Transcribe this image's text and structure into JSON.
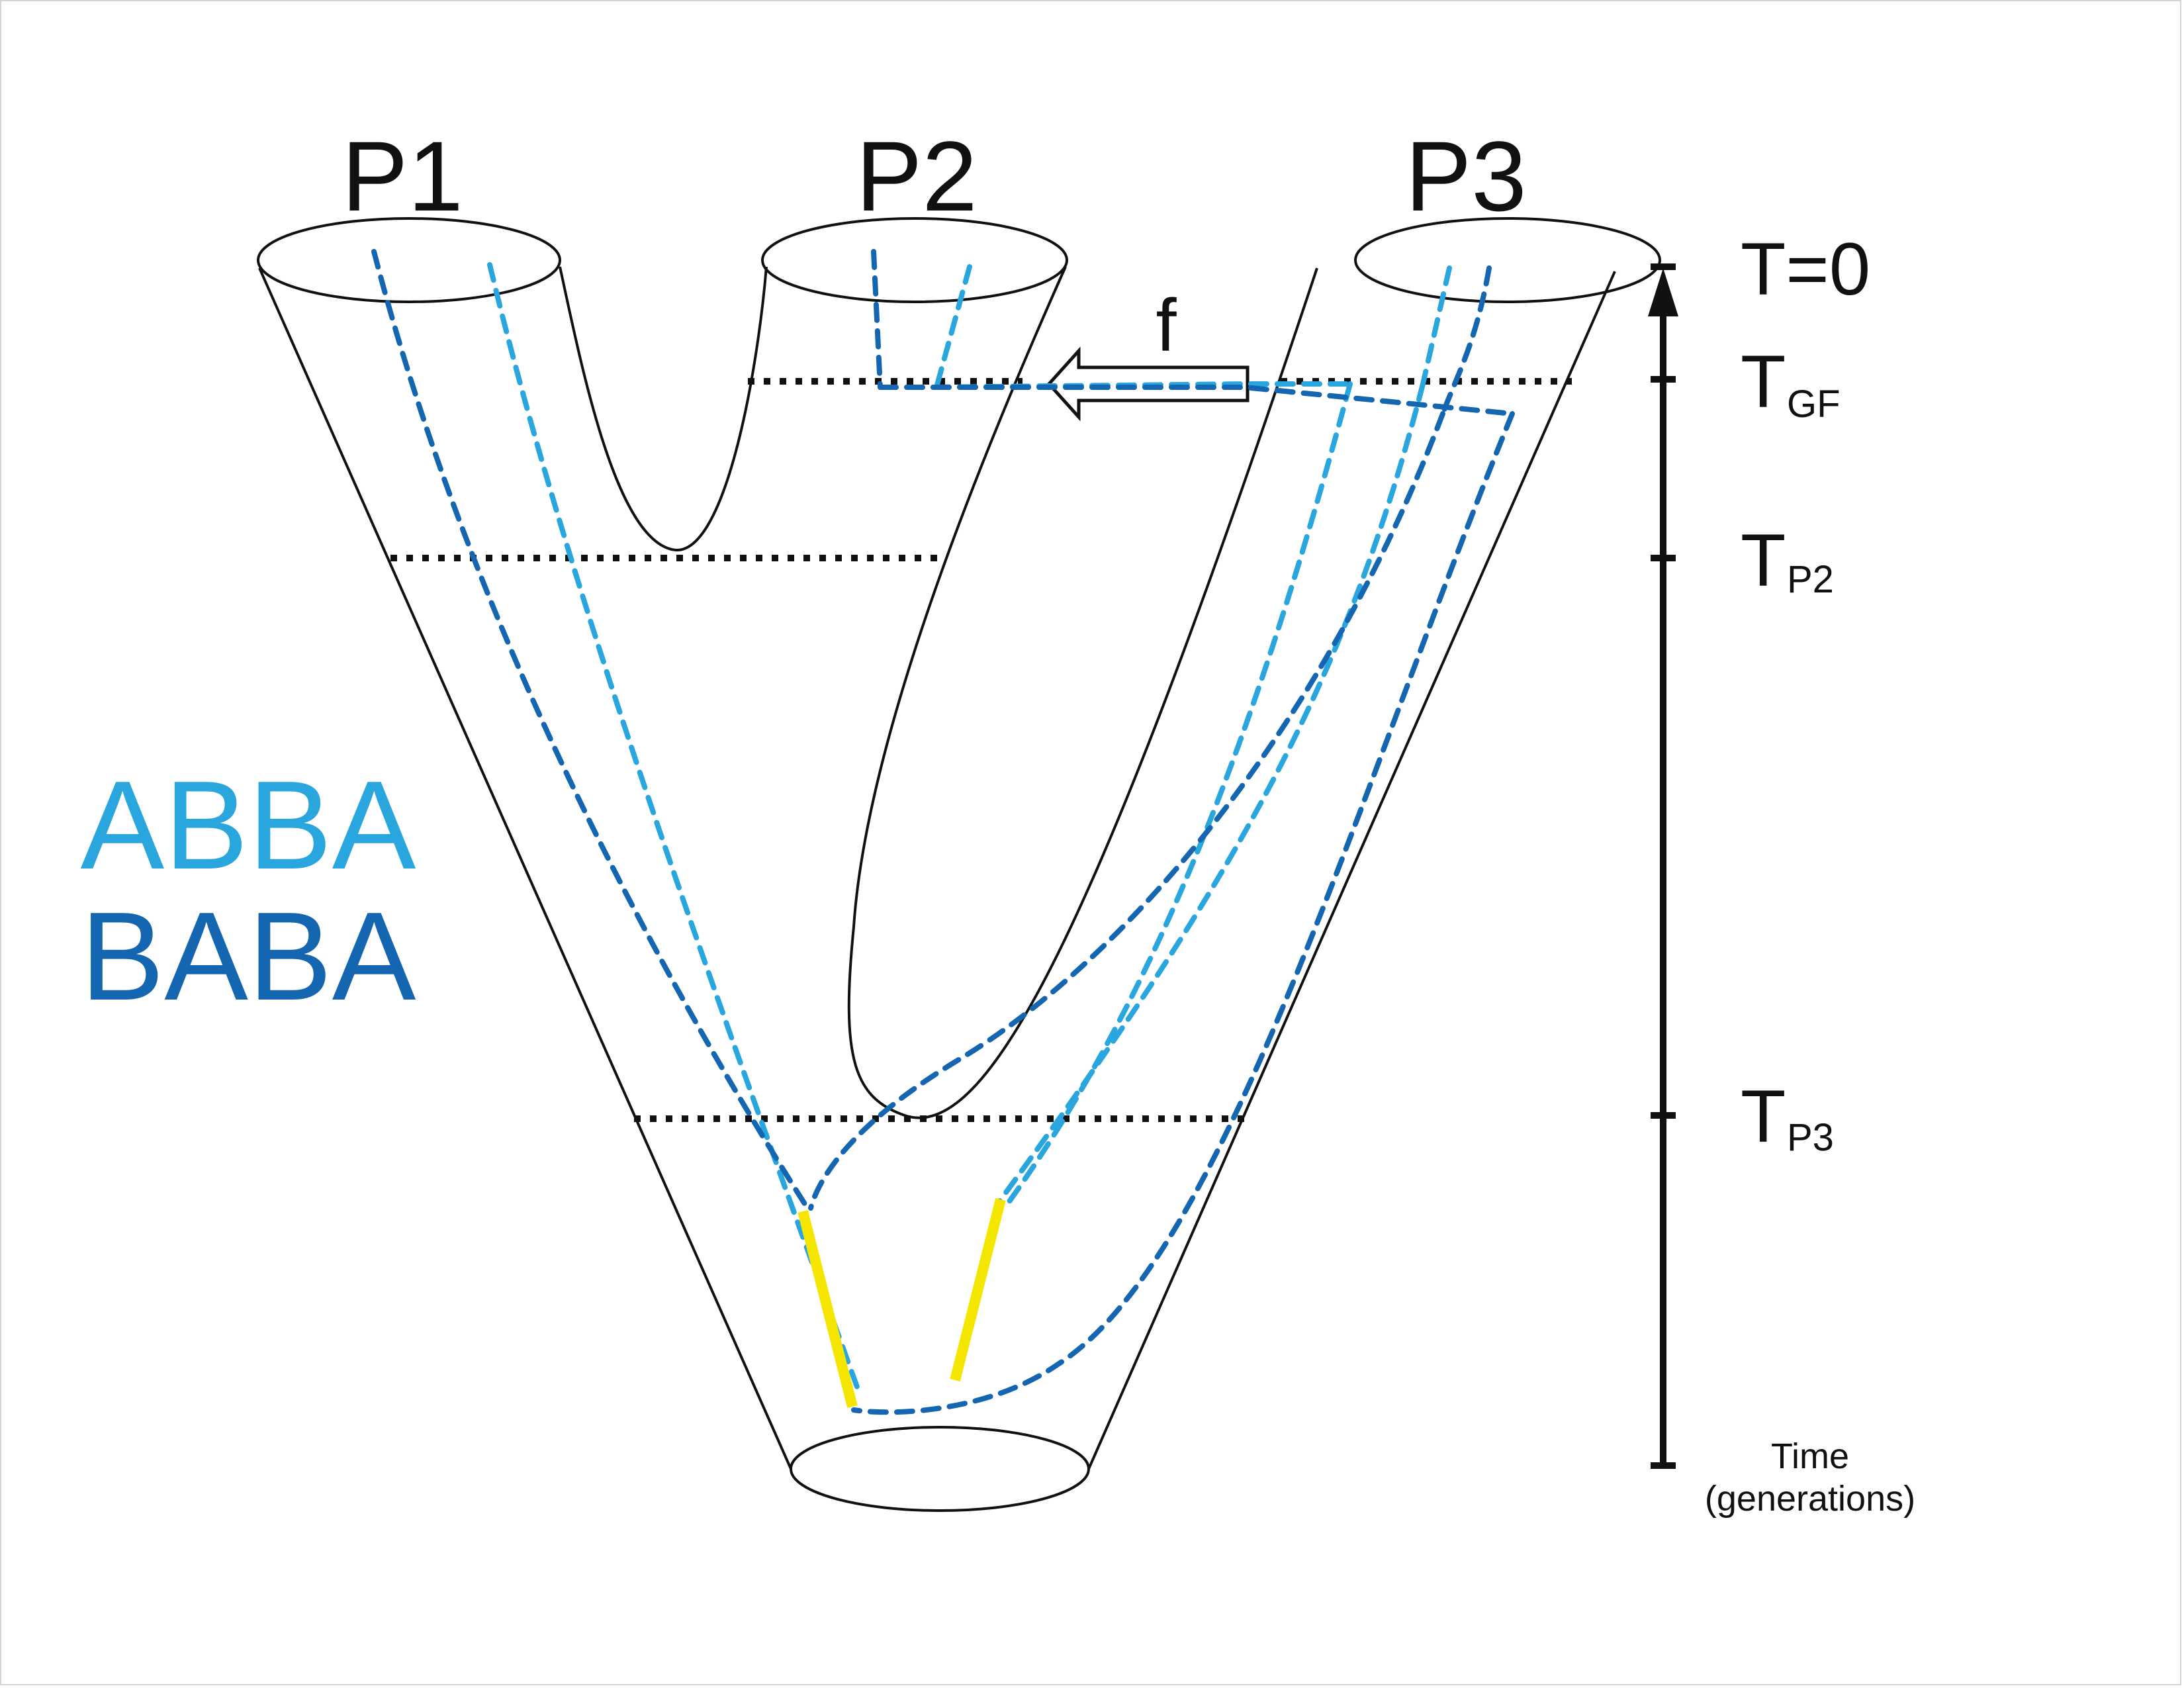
{
  "populations": {
    "p1": "P1",
    "p2": "P2",
    "p3": "P3"
  },
  "gene_flow": {
    "label": "f"
  },
  "time_axis": {
    "t0": "T=0",
    "tgf_main": "T",
    "tgf_sub": "GF",
    "tp2_main": "T",
    "tp2_sub": "P2",
    "tp3_main": "T",
    "tp3_sub": "P3",
    "caption_line1": "Time",
    "caption_line2": "(generations)"
  },
  "legend": {
    "abba": "ABBA",
    "baba": "BABA"
  },
  "colors": {
    "abba": "#29a6de",
    "baba": "#1466b0",
    "outline": "#111111",
    "highlight": "#f5e600"
  }
}
